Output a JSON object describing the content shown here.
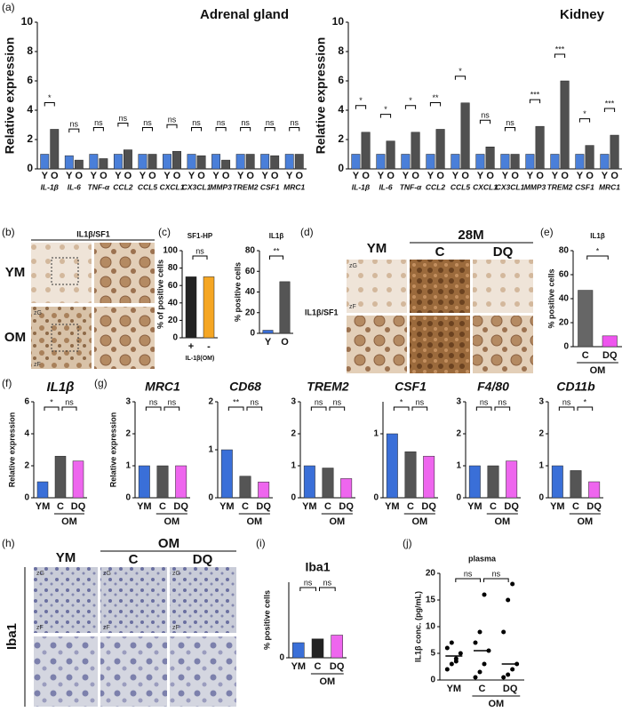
{
  "figure": {
    "panel_labels": [
      "(a)",
      "(b)",
      "(c)",
      "(d)",
      "(e)",
      "(f)",
      "(g)",
      "(h)",
      "(i)",
      "(j)"
    ],
    "image_b": {
      "stain": "IL1β/SF1",
      "rows": [
        "YM",
        "OM"
      ],
      "zones": [
        "zG",
        "zF"
      ]
    },
    "image_d": {
      "stain": "IL1β/SF1",
      "group": "28M",
      "columns": [
        "YM",
        "C",
        "DQ"
      ],
      "zones": [
        "zG",
        "zF"
      ]
    },
    "image_h": {
      "stain": "Iba1",
      "group": "OM",
      "columns": [
        "YM",
        "C",
        "DQ"
      ],
      "zones": [
        "zG",
        "zF",
        "zG",
        "zF",
        "zG",
        "zF"
      ]
    }
  },
  "chart_data": [
    {
      "type": "bar",
      "title": "Adrenal gland",
      "ylabel": "Relative expression",
      "categories": [
        "IL-1β",
        "IL-6",
        "TNF-α",
        "CCL2",
        "CCL5",
        "CXCL1",
        "CX3CL1",
        "MMP3",
        "TREM2",
        "CSF1",
        "MRC1"
      ],
      "series": [
        {
          "name": "Y",
          "color": "#4a7fd9",
          "values": [
            1.0,
            0.9,
            1.0,
            1.0,
            1.0,
            1.0,
            1.0,
            1.0,
            1.0,
            1.0,
            1.0
          ]
        },
        {
          "name": "O",
          "color": "#505050",
          "values": [
            2.7,
            0.6,
            0.7,
            1.3,
            1.0,
            1.2,
            0.9,
            0.6,
            1.0,
            0.9,
            1.0
          ]
        }
      ],
      "significance": [
        "*",
        "ns",
        "ns",
        "ns",
        "ns",
        "ns",
        "ns",
        "ns",
        "ns",
        "ns",
        "ns"
      ],
      "ylim": [
        0,
        10
      ],
      "yticks": [
        0,
        2,
        4,
        6,
        8,
        10
      ]
    },
    {
      "type": "bar",
      "title": "Kidney",
      "ylabel": "Relative expression",
      "categories": [
        "IL-1β",
        "IL-6",
        "TNF-α",
        "CCL2",
        "CCL5",
        "CXCL1",
        "CX3CL1",
        "MMP3",
        "TREM2",
        "CSF1",
        "MRC1"
      ],
      "series": [
        {
          "name": "Y",
          "color": "#4a7fd9",
          "values": [
            1.0,
            1.0,
            1.0,
            1.0,
            1.0,
            1.0,
            1.0,
            1.0,
            1.0,
            1.0,
            1.0
          ]
        },
        {
          "name": "O",
          "color": "#505050",
          "values": [
            2.5,
            1.9,
            2.5,
            2.7,
            4.5,
            1.5,
            1.0,
            2.9,
            6.0,
            1.6,
            2.3
          ]
        }
      ],
      "significance": [
        "*",
        "*",
        "*",
        "**",
        "*",
        "ns",
        "ns",
        "***",
        "***",
        "*",
        "***"
      ],
      "ylim": [
        0,
        10
      ],
      "yticks": [
        0,
        2,
        4,
        6,
        8,
        10
      ]
    },
    {
      "type": "bar",
      "title": "SF1-HP",
      "ylabel": "% of positive cells",
      "xlabel": "IL-1β(OM)",
      "categories": [
        "+",
        "-"
      ],
      "values": [
        70,
        70
      ],
      "colors": [
        "#222222",
        "#f5a623"
      ],
      "significance": [
        "ns"
      ],
      "ylim": [
        0,
        100
      ],
      "yticks": [
        0,
        20,
        40,
        60,
        80,
        100
      ]
    },
    {
      "type": "bar",
      "title": "IL1β",
      "ylabel": "% positive cells",
      "categories": [
        "Y",
        "O"
      ],
      "values": [
        3,
        50
      ],
      "colors": [
        "#3a6fd8",
        "#555555"
      ],
      "significance": [
        "**"
      ],
      "ylim": [
        0,
        80
      ],
      "yticks": [
        0,
        20,
        40,
        60,
        80
      ]
    },
    {
      "type": "bar",
      "title": "IL1β",
      "ylabel": "% positive cells",
      "group_label": "OM",
      "categories": [
        "C",
        "DQ"
      ],
      "values": [
        47,
        9
      ],
      "colors": [
        "#666666",
        "#ee55ee"
      ],
      "significance": [
        "*"
      ],
      "ylim": [
        0,
        80
      ],
      "yticks": [
        0,
        20,
        40,
        60,
        80
      ]
    },
    {
      "type": "bar",
      "title": "IL1β",
      "ylabel": "Relative expression",
      "group_label": "OM",
      "categories": [
        "YM",
        "C",
        "DQ"
      ],
      "values": [
        1.0,
        2.6,
        2.3
      ],
      "colors": [
        "#3a6fd8",
        "#555555",
        "#ee66ee"
      ],
      "significance": [
        "*",
        "ns"
      ],
      "ylim": [
        0,
        6
      ],
      "yticks": [
        0,
        2,
        4,
        6
      ]
    },
    {
      "type": "bar",
      "title": "MRC1",
      "ylabel": "Relative expression",
      "group_label": "OM",
      "categories": [
        "YM",
        "C",
        "DQ"
      ],
      "values": [
        1.0,
        1.0,
        1.0
      ],
      "colors": [
        "#3a6fd8",
        "#555555",
        "#ee66ee"
      ],
      "significance": [
        "ns",
        "ns"
      ],
      "ylim": [
        0,
        3
      ],
      "yticks": [
        0,
        1,
        2,
        3
      ]
    },
    {
      "type": "bar",
      "title": "CD68",
      "group_label": "OM",
      "categories": [
        "YM",
        "C",
        "DQ"
      ],
      "values": [
        1.0,
        0.45,
        0.33
      ],
      "colors": [
        "#3a6fd8",
        "#555555",
        "#ee66ee"
      ],
      "significance": [
        "**",
        "ns"
      ],
      "ylim": [
        0,
        2
      ],
      "yticks": [
        0,
        1,
        2
      ]
    },
    {
      "type": "bar",
      "title": "TREM2",
      "group_label": "OM",
      "categories": [
        "YM",
        "C",
        "DQ"
      ],
      "values": [
        1.0,
        0.93,
        0.6
      ],
      "colors": [
        "#3a6fd8",
        "#555555",
        "#ee66ee"
      ],
      "significance": [
        "ns",
        "ns"
      ],
      "ylim": [
        0,
        3
      ],
      "yticks": [
        0,
        1,
        2,
        3
      ]
    },
    {
      "type": "bar",
      "title": "CSF1",
      "group_label": "OM",
      "categories": [
        "YM",
        "C",
        "DQ"
      ],
      "values": [
        1.0,
        0.72,
        0.65
      ],
      "colors": [
        "#3a6fd8",
        "#555555",
        "#ee66ee"
      ],
      "significance": [
        "*",
        "ns"
      ],
      "ylim": [
        0,
        1.5
      ],
      "yticks": [
        0,
        1
      ]
    },
    {
      "type": "bar",
      "title": "F4/80",
      "group_label": "OM",
      "categories": [
        "YM",
        "C",
        "DQ"
      ],
      "values": [
        1.0,
        1.0,
        1.15
      ],
      "colors": [
        "#3a6fd8",
        "#555555",
        "#ee66ee"
      ],
      "significance": [
        "ns",
        "ns"
      ],
      "ylim": [
        0,
        3
      ],
      "yticks": [
        0,
        1,
        2,
        3
      ]
    },
    {
      "type": "bar",
      "title": "CD11b",
      "group_label": "OM",
      "categories": [
        "YM",
        "C",
        "DQ"
      ],
      "values": [
        1.0,
        0.85,
        0.5
      ],
      "colors": [
        "#3a6fd8",
        "#555555",
        "#ee66ee"
      ],
      "significance": [
        "ns",
        "*"
      ],
      "ylim": [
        0,
        3
      ],
      "yticks": [
        0,
        1,
        2,
        3
      ]
    },
    {
      "type": "bar",
      "title": "Iba1",
      "ylabel": "% positive cells",
      "group_label": "OM",
      "categories": [
        "YM",
        "C",
        "DQ"
      ],
      "values": [
        4,
        5,
        6
      ],
      "colors": [
        "#3a6fd8",
        "#222222",
        "#ee66ee"
      ],
      "significance": [
        "ns",
        "ns"
      ],
      "ylim": [
        0,
        20
      ],
      "yticks": [
        0
      ]
    },
    {
      "type": "dot",
      "title": "plasma",
      "ylabel": "IL1β conc. (pg/mL)",
      "group_label": "OM",
      "categories": [
        "YM",
        "C",
        "DQ"
      ],
      "values": [
        4.5,
        5.5,
        3.0
      ],
      "points": [
        [
          2,
          3,
          4,
          5,
          6,
          7,
          3.5
        ],
        [
          0.5,
          1.5,
          3,
          5.5,
          7,
          9,
          16
        ],
        [
          0.5,
          1,
          2,
          3,
          9,
          15,
          18
        ]
      ],
      "significance": [
        "ns",
        "ns"
      ],
      "ylim": [
        0,
        20
      ],
      "yticks": [
        0,
        5,
        10,
        15,
        20
      ]
    }
  ]
}
